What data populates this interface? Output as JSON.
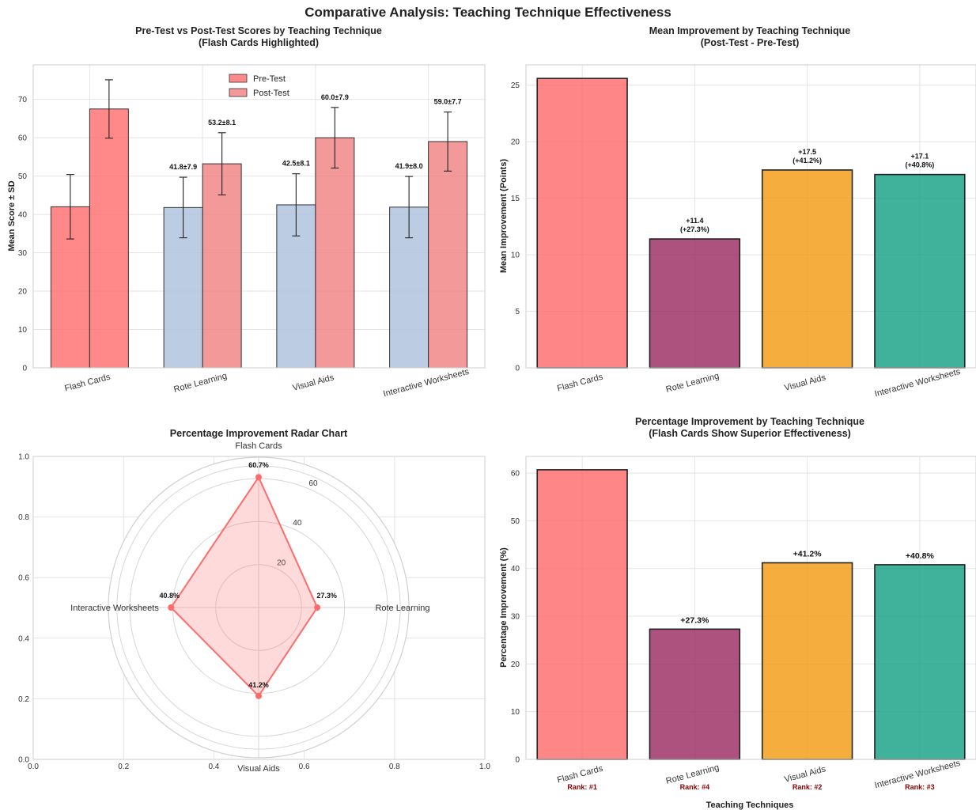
{
  "suptitle": "Comparative Analysis: Teaching Technique Effectiveness",
  "chart_data": [
    {
      "type": "bar",
      "title": "Pre-Test vs Post-Test Scores by Teaching Technique",
      "subtitle": "(Flash Cards Highlighted)",
      "xlabel": "",
      "ylabel": "Mean Score ± SD",
      "ylim": [
        0,
        79
      ],
      "yticks": [
        0,
        10,
        20,
        30,
        40,
        50,
        60,
        70
      ],
      "categories": [
        "Flash Cards",
        "Rote Learning",
        "Visual Aids",
        "Interactive Worksheets"
      ],
      "series": [
        {
          "name": "Pre-Test",
          "values": [
            42.0,
            41.8,
            42.5,
            41.9
          ],
          "errors": [
            8.4,
            7.9,
            8.1,
            8.0
          ],
          "colors": [
            "#ff6b6b",
            "#b0c4de",
            "#b0c4de",
            "#b0c4de"
          ]
        },
        {
          "name": "Post-Test",
          "values": [
            67.5,
            53.2,
            60.0,
            59.0
          ],
          "errors": [
            7.6,
            8.1,
            7.9,
            7.7
          ],
          "colors": [
            "#ff6b6b",
            "#f08080",
            "#f08080",
            "#f08080"
          ]
        }
      ],
      "annotations_pre": [
        "",
        "41.8±7.9",
        "42.5±8.1",
        "41.9±8.0"
      ],
      "annotations_post": [
        "",
        "53.2±8.1",
        "60.0±7.9",
        "59.0±7.7"
      ],
      "legend": [
        "Pre-Test",
        "Post-Test"
      ],
      "legend_loc": "upper-center",
      "grid": true
    },
    {
      "type": "bar",
      "title": "Mean Improvement by Teaching Technique",
      "subtitle": "(Post-Test - Pre-Test)",
      "xlabel": "",
      "ylabel": "Mean Improvement (Points)",
      "ylim": [
        0,
        26.8
      ],
      "yticks": [
        0,
        5,
        10,
        15,
        20,
        25
      ],
      "categories": [
        "Flash Cards",
        "Rote Learning",
        "Visual Aids",
        "Interactive Worksheets"
      ],
      "values": [
        25.6,
        11.4,
        17.5,
        17.1
      ],
      "colors": [
        "#ff6b6b",
        "#9b2c62",
        "#f39c12",
        "#16a085"
      ],
      "labels": [
        "",
        "+11.4\n(+27.3%)",
        "+17.5\n(+41.2%)",
        "+17.1\n(+40.8%)"
      ],
      "grid": true
    },
    {
      "type": "radar",
      "title": "Percentage Improvement Radar Chart",
      "categories": [
        "Flash Cards",
        "Rote Learning",
        "Visual Aids",
        "Interactive Worksheets"
      ],
      "values": [
        60.7,
        27.3,
        41.2,
        40.8
      ],
      "labels": [
        "60.7%",
        "27.3%",
        "41.2%",
        "40.8%"
      ],
      "rticks": [
        20,
        40,
        60
      ],
      "rmax": 70,
      "cart_ticks": [
        "0.0",
        "0.2",
        "0.4",
        "0.6",
        "0.8",
        "1.0"
      ],
      "color": "#ff6b6b"
    },
    {
      "type": "bar",
      "title": "Percentage Improvement by Teaching Technique",
      "subtitle": "(Flash Cards Show Superior Effectiveness)",
      "xlabel": "Teaching Techniques",
      "ylabel": "Percentage Improvement (%)",
      "ylim": [
        0,
        63.5
      ],
      "yticks": [
        0,
        10,
        20,
        30,
        40,
        50,
        60
      ],
      "categories": [
        "Flash Cards",
        "Rote Learning",
        "Visual Aids",
        "Interactive Worksheets"
      ],
      "values": [
        60.7,
        27.3,
        41.2,
        40.8
      ],
      "colors": [
        "#ff6b6b",
        "#9b2c62",
        "#f39c12",
        "#16a085"
      ],
      "labels": [
        "",
        "+27.3%",
        "+41.2%",
        "+40.8%"
      ],
      "ranks": [
        "Rank: #1",
        "Rank: #4",
        "Rank: #2",
        "Rank: #3"
      ],
      "grid": true
    }
  ]
}
